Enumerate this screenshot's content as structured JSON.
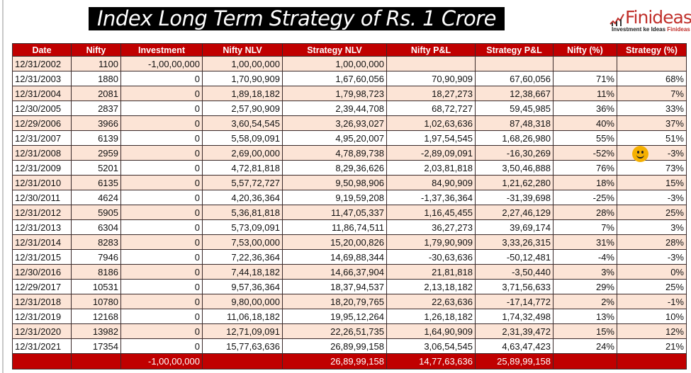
{
  "header": {
    "title_line1": "Index Long Term Strategy of Rs. 1",
    "title_line2": "Crore"
  },
  "logo": {
    "brand": "Finideas",
    "tagline_prefix": "Investment ke Ideas ",
    "tagline_accent": "Finideas"
  },
  "table": {
    "columns": [
      "Date",
      "Nifty",
      "Investment",
      "Nifty NLV",
      "Strategy NLV",
      "Nifty P&L",
      "Strategy P&L",
      "Nifty (%)",
      "Strategy (%)"
    ],
    "rows": [
      [
        "12/31/2002",
        "1100",
        "-1,00,00,000",
        "1,00,00,000",
        "1,00,00,000",
        "",
        "",
        "",
        ""
      ],
      [
        "12/31/2003",
        "1880",
        "0",
        "1,70,90,909",
        "1,67,60,056",
        "70,90,909",
        "67,60,056",
        "71%",
        "68%"
      ],
      [
        "12/31/2004",
        "2081",
        "0",
        "1,89,18,182",
        "1,79,98,723",
        "18,27,273",
        "12,38,667",
        "11%",
        "7%"
      ],
      [
        "12/30/2005",
        "2837",
        "0",
        "2,57,90,909",
        "2,39,44,708",
        "68,72,727",
        "59,45,985",
        "36%",
        "33%"
      ],
      [
        "12/29/2006",
        "3966",
        "0",
        "3,60,54,545",
        "3,26,93,027",
        "1,02,63,636",
        "87,48,318",
        "40%",
        "37%"
      ],
      [
        "12/31/2007",
        "6139",
        "0",
        "5,58,09,091",
        "4,95,20,007",
        "1,97,54,545",
        "1,68,26,980",
        "55%",
        "51%"
      ],
      [
        "12/31/2008",
        "2959",
        "0",
        "2,69,00,000",
        "4,78,89,738",
        "-2,89,09,091",
        "-16,30,269",
        "-52%",
        "-3%"
      ],
      [
        "12/31/2009",
        "5201",
        "0",
        "4,72,81,818",
        "8,29,36,626",
        "2,03,81,818",
        "3,50,46,888",
        "76%",
        "73%"
      ],
      [
        "12/31/2010",
        "6135",
        "0",
        "5,57,72,727",
        "9,50,98,906",
        "84,90,909",
        "1,21,62,280",
        "18%",
        "15%"
      ],
      [
        "12/30/2011",
        "4624",
        "0",
        "4,20,36,364",
        "9,19,59,208",
        "-1,37,36,364",
        "-31,39,698",
        "-25%",
        "-3%"
      ],
      [
        "12/31/2012",
        "5905",
        "0",
        "5,36,81,818",
        "11,47,05,337",
        "1,16,45,455",
        "2,27,46,129",
        "28%",
        "25%"
      ],
      [
        "12/31/2013",
        "6304",
        "0",
        "5,73,09,091",
        "11,86,74,511",
        "36,27,273",
        "39,69,174",
        "7%",
        "3%"
      ],
      [
        "12/31/2014",
        "8283",
        "0",
        "7,53,00,000",
        "15,20,00,826",
        "1,79,90,909",
        "3,33,26,315",
        "31%",
        "28%"
      ],
      [
        "12/31/2015",
        "7946",
        "0",
        "7,22,36,364",
        "14,69,88,344",
        "-30,63,636",
        "-50,12,481",
        "-4%",
        "-3%"
      ],
      [
        "12/30/2016",
        "8186",
        "0",
        "7,44,18,182",
        "14,66,37,904",
        "21,81,818",
        "-3,50,440",
        "3%",
        "0%"
      ],
      [
        "12/29/2017",
        "10531",
        "0",
        "9,57,36,364",
        "18,37,94,537",
        "2,13,18,182",
        "3,71,56,633",
        "29%",
        "25%"
      ],
      [
        "12/31/2018",
        "10780",
        "0",
        "9,80,00,000",
        "18,20,79,765",
        "22,63,636",
        "-17,14,772",
        "2%",
        "-1%"
      ],
      [
        "12/31/2019",
        "12168",
        "0",
        "11,06,18,182",
        "19,95,12,264",
        "1,26,18,182",
        "1,74,32,498",
        "13%",
        "10%"
      ],
      [
        "12/31/2020",
        "13982",
        "0",
        "12,71,09,091",
        "22,26,51,735",
        "1,64,90,909",
        "2,31,39,472",
        "15%",
        "12%"
      ],
      [
        "12/31/2021",
        "17354",
        "0",
        "15,77,63,636",
        "26,89,99,158",
        "3,06,54,545",
        "4,63,47,423",
        "24%",
        "21%"
      ]
    ],
    "total": [
      "",
      "",
      "-1,00,00,000",
      "",
      "26,89,99,158",
      "14,77,63,636",
      "25,89,99,158",
      "",
      ""
    ]
  }
}
